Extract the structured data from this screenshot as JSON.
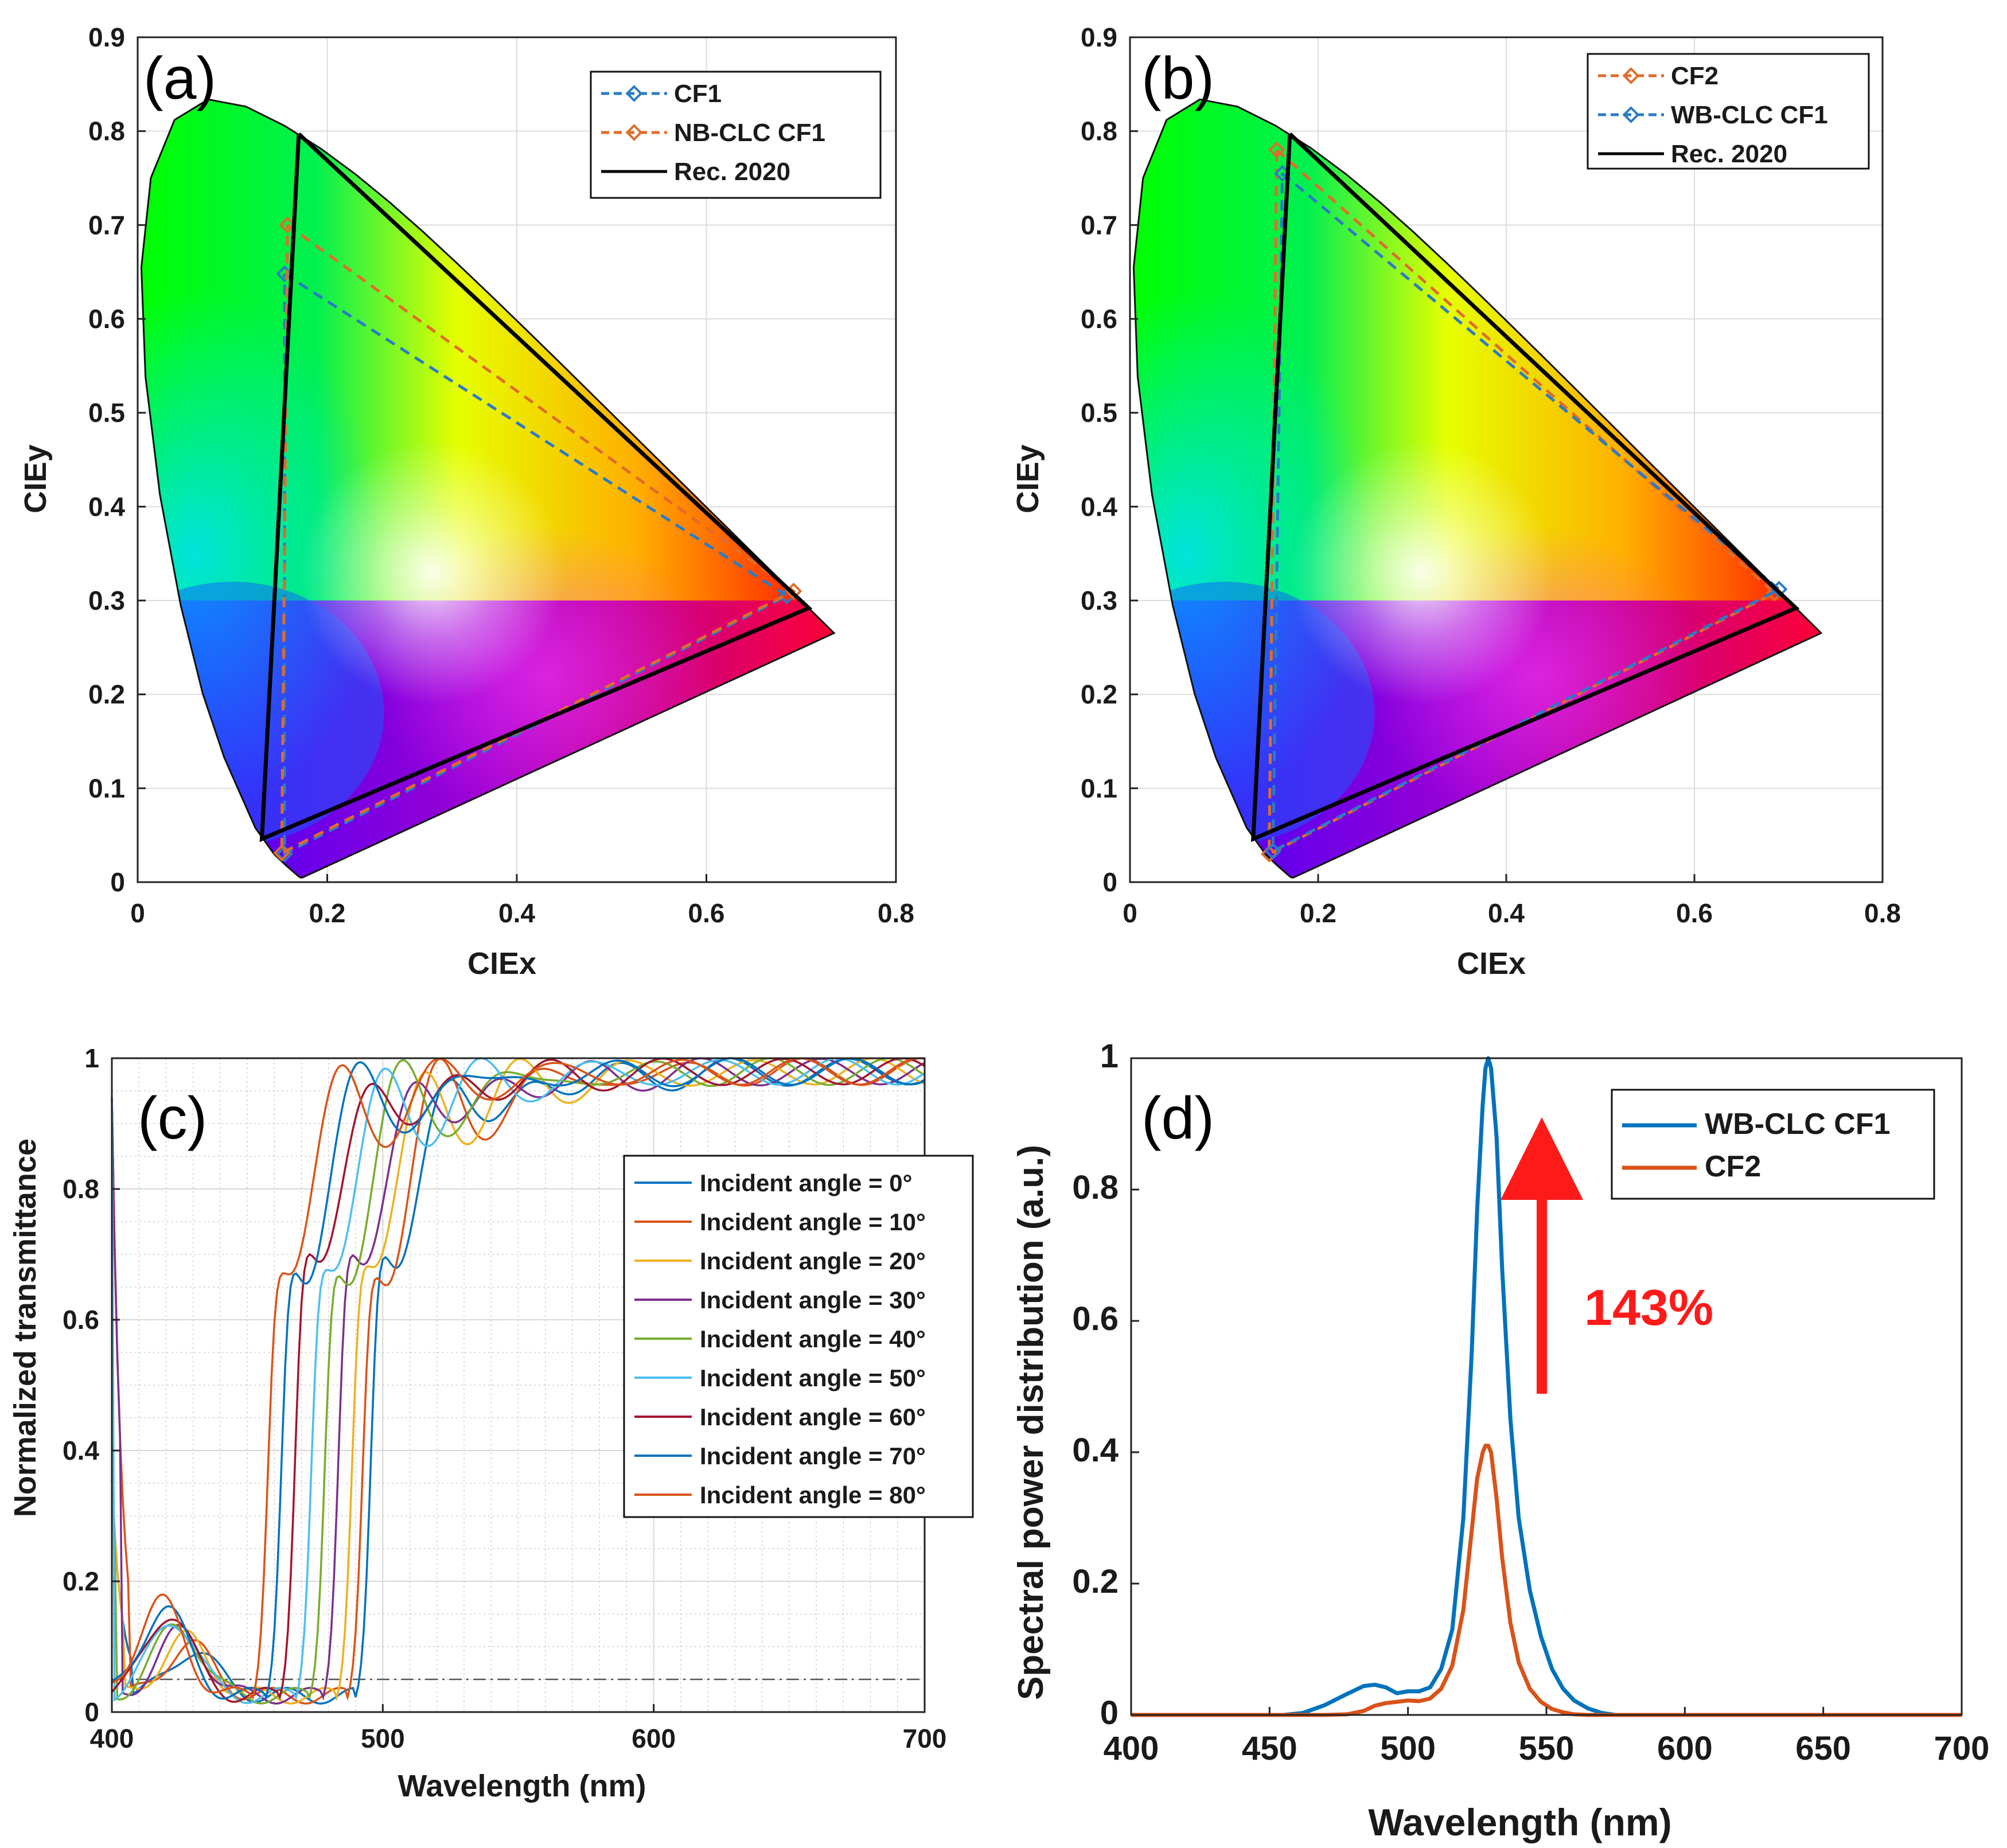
{
  "chart_data": [
    {
      "id": "a",
      "type": "line",
      "panel_label": "(a)",
      "xlabel": "CIEx",
      "ylabel": "CIEy",
      "xlim": [
        0,
        0.8
      ],
      "ylim": [
        0,
        0.9
      ],
      "xticks": [
        "0",
        "0.2",
        "0.4",
        "0.6",
        "0.8"
      ],
      "yticks": [
        "0",
        "0.1",
        "0.2",
        "0.3",
        "0.4",
        "0.5",
        "0.6",
        "0.7",
        "0.8",
        "0.9"
      ],
      "grid": true,
      "legend_position": "top-right",
      "series": [
        {
          "name": "CF1",
          "style": "dashed",
          "marker": "diamond",
          "color": "#2b7bc4",
          "x": [
            0.155,
            0.685,
            0.155,
            0.155
          ],
          "y": [
            0.648,
            0.305,
            0.03,
            0.648
          ]
        },
        {
          "name": "NB-CLC CF1",
          "style": "dashed",
          "marker": "diamond",
          "color": "#e06c2a",
          "x": [
            0.158,
            0.692,
            0.152,
            0.158
          ],
          "y": [
            0.7,
            0.31,
            0.031,
            0.7
          ]
        },
        {
          "name": "Rec. 2020",
          "style": "solid",
          "color": "#000000",
          "x": [
            0.17,
            0.708,
            0.131,
            0.17
          ],
          "y": [
            0.797,
            0.292,
            0.046,
            0.797
          ]
        }
      ]
    },
    {
      "id": "b",
      "type": "line",
      "panel_label": "(b)",
      "xlabel": "CIEx",
      "ylabel": "CIEy",
      "xlim": [
        0,
        0.8
      ],
      "ylim": [
        0,
        0.9
      ],
      "xticks": [
        "0",
        "0.2",
        "0.4",
        "0.6",
        "0.8"
      ],
      "yticks": [
        "0",
        "0.1",
        "0.2",
        "0.3",
        "0.4",
        "0.5",
        "0.6",
        "0.7",
        "0.8",
        "0.9"
      ],
      "grid": true,
      "legend_position": "top-right",
      "series": [
        {
          "name": "CF2",
          "style": "dashed",
          "marker": "diamond",
          "color": "#e06c2a",
          "x": [
            0.156,
            0.685,
            0.148,
            0.156
          ],
          "y": [
            0.78,
            0.308,
            0.03,
            0.78
          ]
        },
        {
          "name": "WB-CLC CF1",
          "style": "dashed",
          "marker": "diamond",
          "color": "#2b7bc4",
          "x": [
            0.162,
            0.69,
            0.152,
            0.162
          ],
          "y": [
            0.755,
            0.312,
            0.033,
            0.755
          ]
        },
        {
          "name": "Rec. 2020",
          "style": "solid",
          "color": "#000000",
          "x": [
            0.17,
            0.708,
            0.131,
            0.17
          ],
          "y": [
            0.797,
            0.292,
            0.046,
            0.797
          ]
        }
      ]
    },
    {
      "id": "c",
      "type": "line",
      "panel_label": "(c)",
      "xlabel": "Wavelength (nm)",
      "ylabel": "Normalized transmittance",
      "xlim": [
        400,
        700
      ],
      "ylim": [
        0,
        1
      ],
      "xticks": [
        "400",
        "500",
        "600",
        "700"
      ],
      "yticks": [
        "0",
        "0.2",
        "0.4",
        "0.6",
        "0.8",
        "1"
      ],
      "grid": true,
      "reference_line": {
        "y": 0.05,
        "style": "dash-dot"
      },
      "legend_position": "center-right",
      "series": [
        {
          "name": "Incident angle = 0°",
          "color": "#0072bd",
          "edge_nm": 496
        },
        {
          "name": "Incident angle = 10°",
          "color": "#d95319",
          "edge_nm": 493
        },
        {
          "name": "Incident angle = 20°",
          "color": "#edb120",
          "edge_nm": 489
        },
        {
          "name": "Incident angle = 30°",
          "color": "#7e2f8e",
          "edge_nm": 484
        },
        {
          "name": "Incident angle = 40°",
          "color": "#77ac30",
          "edge_nm": 479
        },
        {
          "name": "Incident angle = 50°",
          "color": "#4dbeee",
          "edge_nm": 474
        },
        {
          "name": "Incident angle = 60°",
          "color": "#a2142f",
          "edge_nm": 468
        },
        {
          "name": "Incident angle = 70°",
          "color": "#0072bd",
          "edge_nm": 463
        },
        {
          "name": "Incident angle = 80°",
          "color": "#d95319",
          "edge_nm": 458
        }
      ]
    },
    {
      "id": "d",
      "type": "line",
      "panel_label": "(d)",
      "xlabel": "Wavelength (nm)",
      "ylabel": "Spectral power distribution (a.u.)",
      "xlim": [
        400,
        700
      ],
      "ylim": [
        0,
        1
      ],
      "xticks": [
        "400",
        "450",
        "500",
        "550",
        "600",
        "650",
        "700"
      ],
      "yticks": [
        "0",
        "0.2",
        "0.4",
        "0.6",
        "0.8",
        "1"
      ],
      "grid": false,
      "legend_position": "top-right",
      "annotation": "143%",
      "series": [
        {
          "name": "WB-CLC CF1",
          "color": "#0072bd",
          "x": [
            400,
            455,
            462,
            470,
            477,
            484,
            488,
            492,
            496,
            500,
            504,
            508,
            512,
            516,
            520,
            523,
            525,
            527,
            528,
            529,
            530,
            532,
            534,
            537,
            540,
            544,
            548,
            552,
            556,
            560,
            565,
            570,
            575,
            580,
            700
          ],
          "y": [
            0,
            0,
            0.003,
            0.015,
            0.03,
            0.044,
            0.046,
            0.042,
            0.033,
            0.036,
            0.036,
            0.042,
            0.07,
            0.13,
            0.3,
            0.55,
            0.77,
            0.93,
            0.985,
            1.0,
            0.985,
            0.88,
            0.68,
            0.45,
            0.3,
            0.19,
            0.12,
            0.07,
            0.04,
            0.022,
            0.01,
            0.003,
            0,
            0,
            0
          ]
        },
        {
          "name": "CF2",
          "color": "#d95319",
          "x": [
            400,
            470,
            478,
            484,
            488,
            492,
            496,
            500,
            504,
            508,
            512,
            516,
            520,
            523,
            525,
            527,
            528,
            529,
            530,
            532,
            534,
            537,
            540,
            544,
            548,
            552,
            556,
            560,
            565,
            700
          ],
          "y": [
            0,
            0,
            0.001,
            0.006,
            0.014,
            0.018,
            0.02,
            0.022,
            0.021,
            0.025,
            0.04,
            0.075,
            0.16,
            0.28,
            0.36,
            0.4,
            0.41,
            0.41,
            0.4,
            0.33,
            0.24,
            0.14,
            0.08,
            0.04,
            0.02,
            0.009,
            0.004,
            0.001,
            0,
            0
          ]
        }
      ]
    }
  ]
}
